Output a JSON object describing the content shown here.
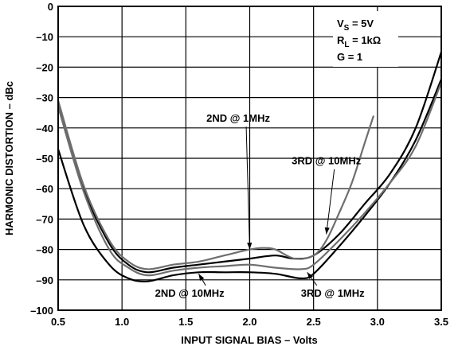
{
  "chart_data": {
    "type": "line",
    "xlabel": "INPUT SIGNAL BIAS – Volts",
    "ylabel": "HARMONIC DISTORTION – dBc",
    "xlim": [
      0.5,
      3.5
    ],
    "ylim": [
      -100,
      0
    ],
    "x_ticks": [
      "0.5",
      "1.0",
      "1.5",
      "2.0",
      "2.5",
      "3.0",
      "3.5"
    ],
    "y_ticks": [
      "0",
      "–10",
      "–20",
      "–30",
      "–40",
      "–50",
      "–60",
      "–70",
      "–80",
      "–90",
      "–100"
    ],
    "grid": true,
    "conditions": {
      "vs": {
        "main": "V",
        "sub": "S",
        "rest": " = 5V"
      },
      "rl": {
        "main": "R",
        "sub": "L",
        "rest": " = 1kΩ"
      },
      "g": {
        "main": "G = 1"
      }
    },
    "series": [
      {
        "name": "2ND @ 1MHz",
        "color": "#000000",
        "points": [
          [
            0.5,
            -32
          ],
          [
            0.7,
            -60
          ],
          [
            0.9,
            -78
          ],
          [
            1.05,
            -85
          ],
          [
            1.2,
            -87.5
          ],
          [
            1.4,
            -86
          ],
          [
            1.6,
            -85
          ],
          [
            1.8,
            -84
          ],
          [
            2.0,
            -83
          ],
          [
            2.2,
            -82
          ],
          [
            2.35,
            -83
          ],
          [
            2.5,
            -82
          ],
          [
            2.7,
            -75
          ],
          [
            2.9,
            -65
          ],
          [
            3.1,
            -55
          ],
          [
            3.3,
            -40
          ],
          [
            3.5,
            -15
          ]
        ]
      },
      {
        "name": "3RD @ 10MHz",
        "color": "#6e6e6e",
        "points": [
          [
            0.5,
            -31
          ],
          [
            0.7,
            -59
          ],
          [
            0.9,
            -77
          ],
          [
            1.05,
            -84
          ],
          [
            1.2,
            -86.5
          ],
          [
            1.4,
            -85
          ],
          [
            1.6,
            -84
          ],
          [
            1.8,
            -82
          ],
          [
            2.0,
            -80
          ],
          [
            2.1,
            -79.5
          ],
          [
            2.2,
            -80
          ],
          [
            2.35,
            -83
          ],
          [
            2.5,
            -82
          ],
          [
            2.6,
            -77
          ],
          [
            2.7,
            -68
          ],
          [
            2.8,
            -58
          ],
          [
            2.9,
            -45
          ],
          [
            2.97,
            -36
          ]
        ]
      },
      {
        "name": "2ND @ 10MHz",
        "color": "#000000",
        "points": [
          [
            0.5,
            -47
          ],
          [
            0.7,
            -72
          ],
          [
            0.9,
            -85
          ],
          [
            1.05,
            -89.5
          ],
          [
            1.2,
            -90.5
          ],
          [
            1.4,
            -88.5
          ],
          [
            1.6,
            -87.5
          ],
          [
            1.8,
            -87.5
          ],
          [
            2.0,
            -87.5
          ],
          [
            2.2,
            -88
          ],
          [
            2.4,
            -89.5
          ],
          [
            2.5,
            -88
          ],
          [
            2.7,
            -79
          ],
          [
            2.9,
            -69
          ],
          [
            3.1,
            -58
          ],
          [
            3.3,
            -44
          ],
          [
            3.5,
            -24
          ]
        ]
      },
      {
        "name": "3RD @ 1MHz",
        "color": "#6e6e6e",
        "points": [
          [
            0.5,
            -33
          ],
          [
            0.7,
            -61
          ],
          [
            0.9,
            -80
          ],
          [
            1.05,
            -86
          ],
          [
            1.2,
            -88.5
          ],
          [
            1.4,
            -87
          ],
          [
            1.6,
            -86
          ],
          [
            1.8,
            -85.5
          ],
          [
            2.0,
            -85
          ],
          [
            2.2,
            -86
          ],
          [
            2.4,
            -86.5
          ],
          [
            2.5,
            -85
          ],
          [
            2.7,
            -77
          ],
          [
            2.9,
            -68
          ],
          [
            3.1,
            -58
          ],
          [
            3.3,
            -46
          ],
          [
            3.5,
            -25
          ]
        ]
      }
    ],
    "annotations": [
      {
        "text": "2ND @ 1MHz",
        "series": "2ND @ 1MHz",
        "x": 2.0,
        "y": -80,
        "label_x": 1.91,
        "label_y": -38
      },
      {
        "text": "3RD @ 10MHz",
        "series": "3RD @ 10MHz",
        "x": 2.6,
        "y": -75,
        "label_x": 2.6,
        "label_y": -52
      },
      {
        "text": "2ND @ 10MHz",
        "series": "2ND @ 10MHz",
        "x": 1.6,
        "y": -88,
        "label_x": 1.53,
        "label_y": -95.5
      },
      {
        "text": "3RD @ 1MHz",
        "series": "3RD @ 1MHz",
        "x": 2.45,
        "y": -87.5,
        "label_x": 2.65,
        "label_y": -95.5
      }
    ]
  }
}
